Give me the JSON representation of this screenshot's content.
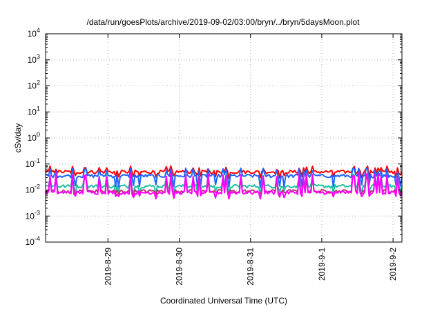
{
  "chart_data": {
    "type": "line",
    "title": "/data/run/goesPlots/archive/2019-09-02/03:00/bryn/../bryn/5daysMoon.plot",
    "xlabel": "Coordinated Universal Time (UTC)",
    "ylabel": "cSv/day",
    "yscale": "log",
    "ylim": [
      0.0001,
      10000
    ],
    "xlim": [
      "2019-08-28T03:00",
      "2019-09-02T03:00"
    ],
    "yticks": [
      {
        "base": "10",
        "exp": "4",
        "value": 10000
      },
      {
        "base": "10",
        "exp": "3",
        "value": 1000
      },
      {
        "base": "10",
        "exp": "2",
        "value": 100
      },
      {
        "base": "10",
        "exp": "1",
        "value": 10
      },
      {
        "base": "10",
        "exp": "0",
        "value": 1
      },
      {
        "base": "10",
        "exp": "-1",
        "value": 0.1
      },
      {
        "base": "10",
        "exp": "-2",
        "value": 0.01
      },
      {
        "base": "10",
        "exp": "-3",
        "value": 0.001
      },
      {
        "base": "10",
        "exp": "-4",
        "value": 0.0001
      }
    ],
    "xticks": [
      {
        "label": "2019-8-29",
        "value": "2019-08-29T00:00"
      },
      {
        "label": "2019-8-30",
        "value": "2019-08-30T00:00"
      },
      {
        "label": "2019-8-31",
        "value": "2019-08-31T00:00"
      },
      {
        "label": "2019-9-1",
        "value": "2019-09-01T00:00"
      },
      {
        "label": "2019-9-2",
        "value": "2019-09-02T00:00"
      }
    ],
    "grid": true,
    "series": [
      {
        "color": "#ff0000",
        "base": 0.05,
        "spike": 0.085,
        "dip": 0.035
      },
      {
        "color": "#1e64ff",
        "base": 0.035,
        "spike": 0.07,
        "dip": 0.015
      },
      {
        "color": "#20c0a0",
        "base": 0.014,
        "spike": 0.04,
        "dip": 0.009
      },
      {
        "color": "#c03070",
        "base": 0.009,
        "spike": 0.035,
        "dip": 0.0075
      },
      {
        "color": "#ff00ff",
        "base": 0.008,
        "spike": 0.045,
        "dip": 0.0055
      }
    ]
  }
}
